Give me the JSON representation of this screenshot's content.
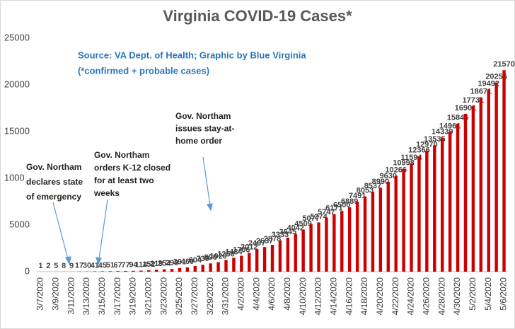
{
  "chart_data": {
    "type": "bar",
    "title": "Virginia COVID-19 Cases*",
    "subtitle": [
      "Source: VA Dept. of Health; Graphic by Blue Virginia",
      "(*confirmed + probable cases)"
    ],
    "categories": [
      "3/7/2020",
      null,
      "3/9/2020",
      null,
      "3/11/2020",
      null,
      "3/13/2020",
      null,
      "3/15/2020",
      null,
      "3/17/2020",
      null,
      "3/19/2020",
      null,
      "3/21/2020",
      null,
      "3/23/2020",
      null,
      "3/25/2020",
      null,
      "3/27/2020",
      null,
      "3/29/2020",
      null,
      "3/31/2020",
      null,
      "4/2/2020",
      null,
      "4/4/2020",
      null,
      "4/6/2020",
      null,
      "4/8/2020",
      null,
      "4/10/2020",
      null,
      "4/12/2020",
      null,
      "4/14/2020",
      null,
      "4/16/2020",
      null,
      "4/18/2020",
      null,
      "4/20/2020",
      null,
      "4/22/2020",
      null,
      "4/24/2020",
      null,
      "4/26/2020",
      null,
      "4/28/2020",
      null,
      "4/30/2020",
      null,
      "5/2/2020",
      null,
      "5/4/2020",
      null,
      "5/6/2020"
    ],
    "values": [
      1,
      2,
      5,
      8,
      9,
      17,
      30,
      41,
      45,
      51,
      67,
      77,
      94,
      114,
      152,
      219,
      254,
      290,
      391,
      460,
      604,
      739,
      890,
      1020,
      1250,
      1484,
      1706,
      2012,
      2407,
      2637,
      2878,
      3333,
      3645,
      4042,
      4509,
      5077,
      5274,
      5747,
      6171,
      6500,
      6889,
      7491,
      8053,
      8537,
      8990,
      9630,
      10266,
      10998,
      11594,
      12366,
      12970,
      13535,
      14339,
      14961,
      15846,
      16901,
      17731,
      18671,
      19492,
      20256,
      21570
    ],
    "color": "#cc0000",
    "ylim": [
      0,
      25000
    ],
    "yticks": [
      0,
      5000,
      10000,
      15000,
      20000,
      25000
    ],
    "grid": false,
    "annotations": [
      {
        "lines": [
          "Gov. Northam",
          "declares state",
          "of emergency"
        ]
      },
      {
        "lines": [
          "Gov. Northam",
          "orders K-12 closed",
          "for at least two",
          "weeks"
        ]
      },
      {
        "lines": [
          "Gov. Northam",
          "issues stay-at-",
          "home order"
        ]
      }
    ]
  }
}
